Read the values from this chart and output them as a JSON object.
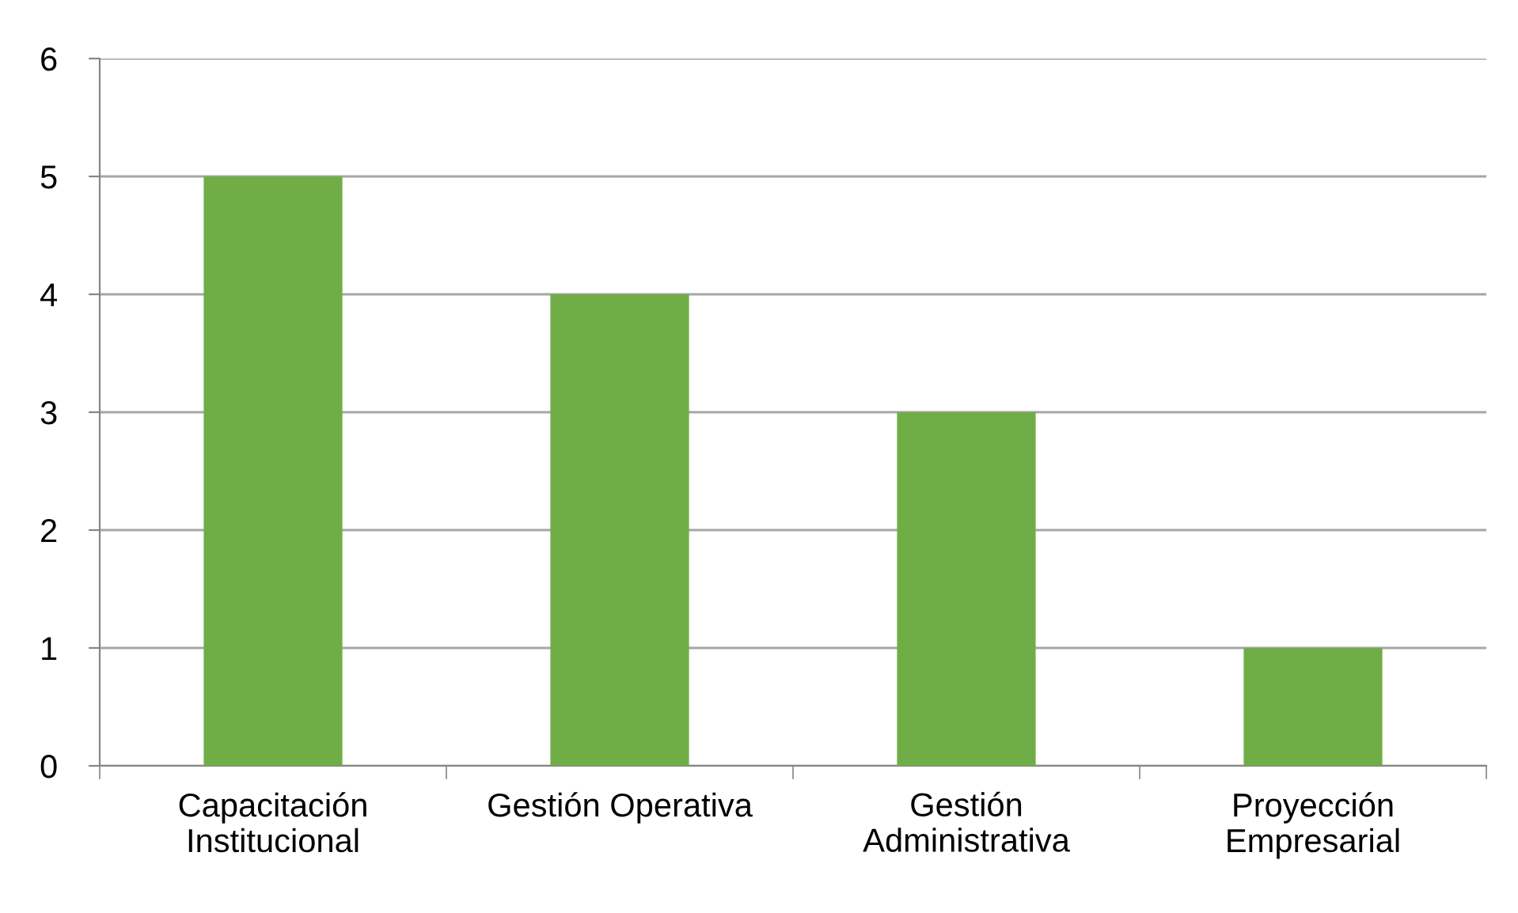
{
  "chart_data": {
    "type": "bar",
    "categories": [
      "Capacitación\nInstitucional",
      "Gestión Operativa",
      "Gestión\nAdministrativa",
      "Proyección\nEmpresarial"
    ],
    "values": [
      5,
      4,
      3,
      1
    ],
    "color": "#70ad47",
    "ylim": [
      0,
      6
    ],
    "yticks": [
      0,
      1,
      2,
      3,
      4,
      5,
      6
    ],
    "grid": "y"
  }
}
